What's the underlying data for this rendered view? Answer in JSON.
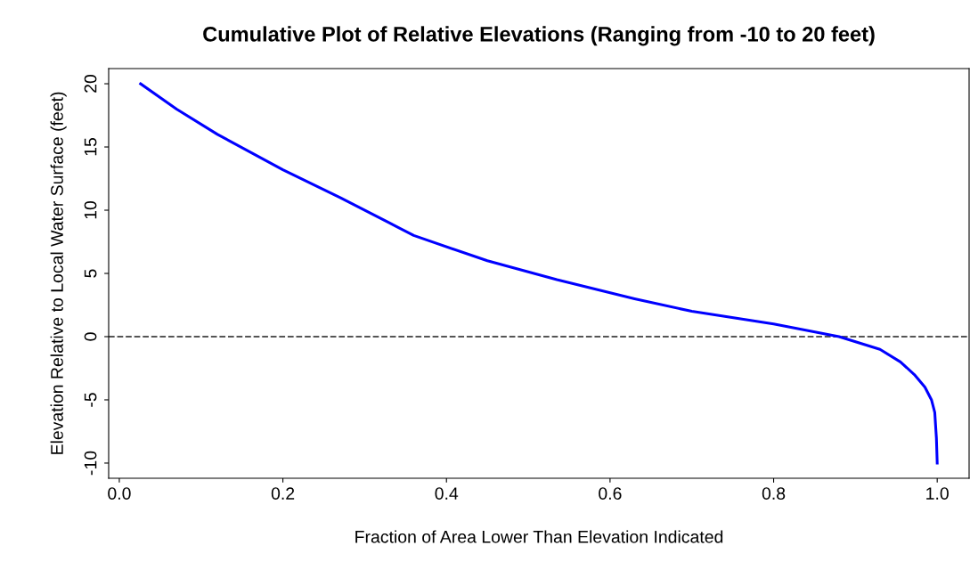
{
  "chart_data": {
    "type": "line",
    "title": "Cumulative Plot of Relative Elevations (Ranging from -10 to 20 feet)",
    "xlabel": "Fraction of Area Lower Than Elevation Indicated",
    "ylabel": "Elevation Relative to Local Water Surface (feet)",
    "x": [
      0.026,
      0.07,
      0.12,
      0.2,
      0.27,
      0.33,
      0.36,
      0.45,
      0.535,
      0.63,
      0.7,
      0.8,
      0.88,
      0.93,
      0.955,
      0.972,
      0.985,
      0.993,
      0.997,
      0.999,
      1.0
    ],
    "series": [
      {
        "color": "#0000ff",
        "values": [
          20,
          18,
          16,
          13.2,
          11,
          9,
          8,
          6,
          4.5,
          3,
          2,
          1,
          0,
          -1,
          -2,
          -3,
          -4,
          -5,
          -6,
          -8,
          -10
        ]
      }
    ],
    "xlim": [
      -0.013,
      1.039
    ],
    "ylim": [
      -11.2,
      21.2
    ],
    "xticks": [
      {
        "value": 0,
        "label": "0.0"
      },
      0.2,
      0.4,
      0.6,
      0.8,
      {
        "value": 1,
        "label": "1.0"
      }
    ],
    "yticks": [
      -10,
      -5,
      0,
      5,
      10,
      15,
      20
    ],
    "ref_lines": [
      {
        "axis": "y",
        "value": 0,
        "color": "#555555",
        "line_style": "dashed"
      }
    ],
    "line_style": "solid",
    "grid": false,
    "legend": false
  }
}
